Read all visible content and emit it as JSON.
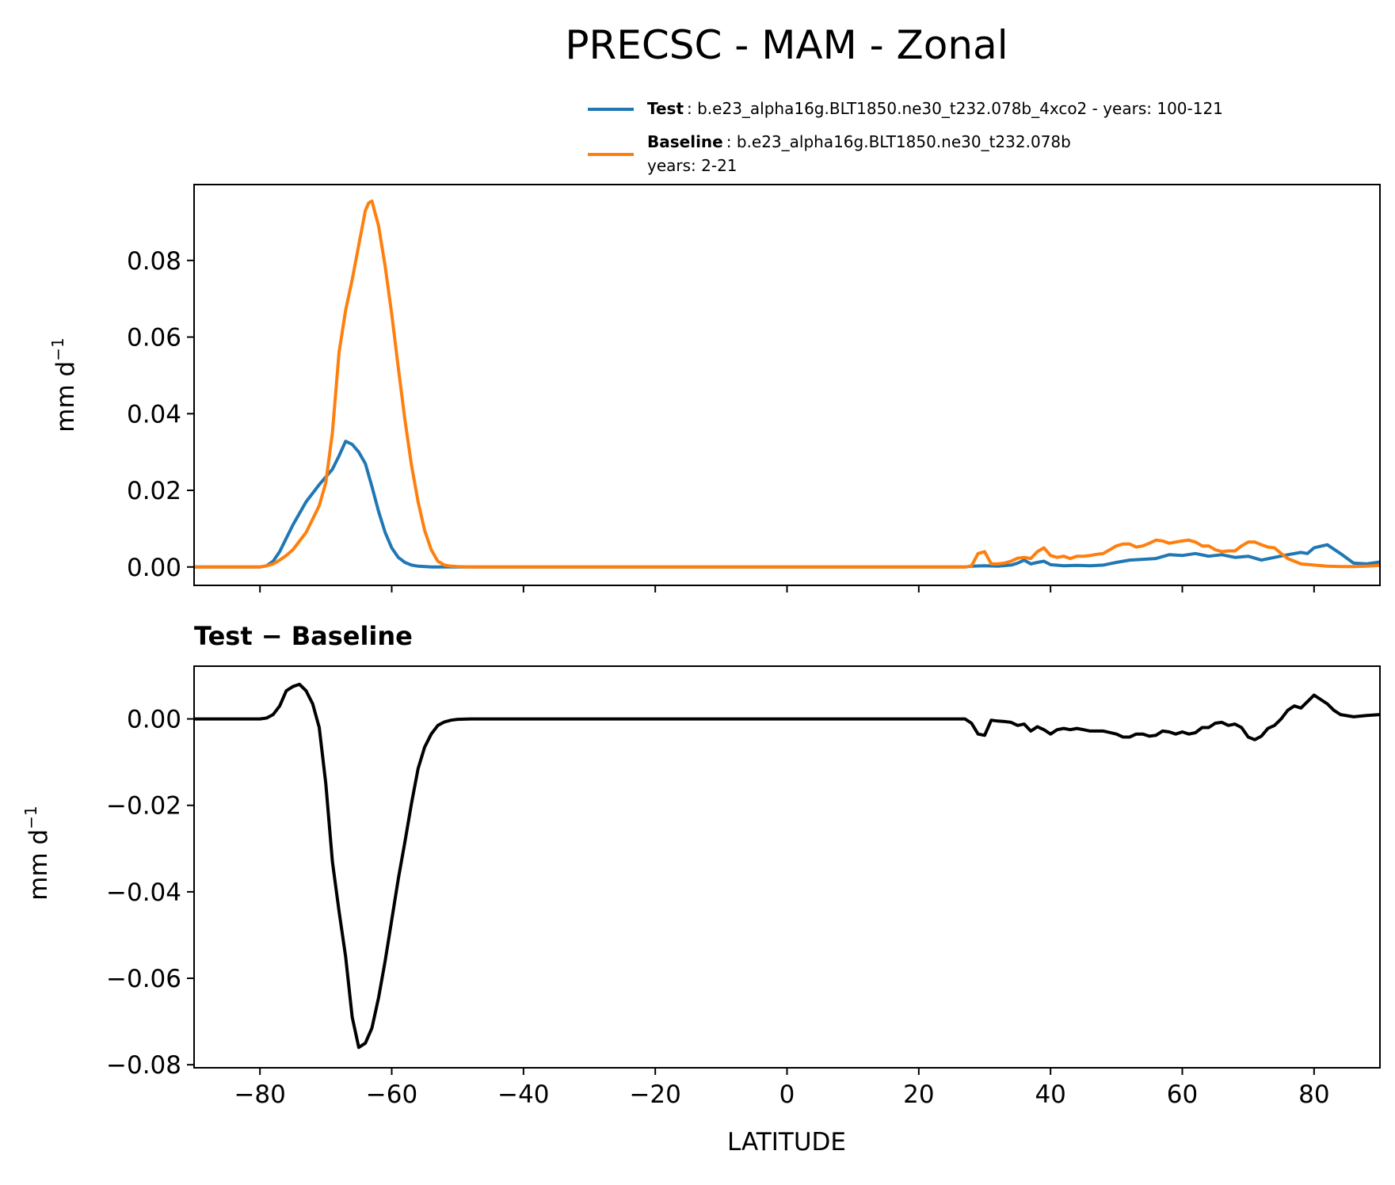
{
  "figure": {
    "title": "PRECSC - MAM - Zonal",
    "diff_title": "Test − Baseline"
  },
  "legend": {
    "test_label": "Test",
    "test_text": ": b.e23_alpha16g.BLT1850.ne30_t232.078b_4xco2 - years: 100-121",
    "baseline_label": "Baseline",
    "baseline_text": ": b.e23_alpha16g.BLT1850.ne30_t232.078b",
    "baseline_years": "years: 2-21"
  },
  "colors": {
    "test": "#1f77b4",
    "baseline": "#ff7f0e",
    "diff": "#000000"
  },
  "chart_data": [
    {
      "type": "line",
      "title": "PRECSC - MAM - Zonal",
      "xlabel": "",
      "ylabel": "mm d",
      "ylabel_sup": "−1",
      "xlim": [
        -90,
        90
      ],
      "ylim": [
        -0.0048,
        0.0998
      ],
      "xticks": [
        -80,
        -60,
        -40,
        -20,
        0,
        20,
        40,
        60,
        80
      ],
      "yticks": [
        0.0,
        0.02,
        0.04,
        0.06,
        0.08
      ],
      "ytick_labels": [
        "0.00",
        "0.02",
        "0.04",
        "0.06",
        "0.08"
      ],
      "series": [
        {
          "name": "Test",
          "x": [
            -90,
            -80,
            -79,
            -78,
            -77,
            -76,
            -75,
            -73,
            -71,
            -69,
            -68,
            -67,
            -66,
            -65,
            -64,
            -63,
            -62,
            -61,
            -60,
            -59,
            -58,
            -57,
            -56,
            -55,
            -54,
            -50,
            -40,
            -20,
            0,
            20,
            27,
            28,
            30,
            32,
            34,
            35,
            36,
            37,
            38,
            39,
            40,
            42,
            44,
            46,
            48,
            50,
            52,
            54,
            56,
            58,
            60,
            62,
            64,
            66,
            68,
            70,
            72,
            74,
            76,
            78,
            79,
            80,
            82,
            84,
            86,
            88,
            90
          ],
          "values": [
            0,
            0,
            0.0003,
            0.0015,
            0.004,
            0.0075,
            0.011,
            0.017,
            0.0215,
            0.0255,
            0.029,
            0.0328,
            0.032,
            0.03,
            0.027,
            0.021,
            0.0145,
            0.009,
            0.005,
            0.0025,
            0.0012,
            0.0005,
            0.0002,
            0.0001,
            0,
            0,
            0,
            0,
            0,
            0,
            0,
            0.0002,
            0.0003,
            0.0002,
            0.0005,
            0.001,
            0.0018,
            0.0008,
            0.0012,
            0.0015,
            0.0006,
            0.0003,
            0.0004,
            0.0003,
            0.0005,
            0.0012,
            0.0018,
            0.002,
            0.0022,
            0.0032,
            0.003,
            0.0035,
            0.0028,
            0.0032,
            0.0025,
            0.0028,
            0.0018,
            0.0025,
            0.0032,
            0.0038,
            0.0035,
            0.005,
            0.0058,
            0.0035,
            0.001,
            0.0008,
            0.0013
          ]
        },
        {
          "name": "Baseline",
          "x": [
            -90,
            -80,
            -79,
            -78,
            -77,
            -76,
            -75,
            -73,
            -71,
            -70,
            -69,
            -68,
            -67,
            -66,
            -65,
            -64,
            -63.5,
            -63,
            -62,
            -61,
            -60,
            -59,
            -58,
            -57,
            -56,
            -55,
            -54,
            -53,
            -52,
            -51,
            -50,
            -48,
            -40,
            -20,
            0,
            20,
            27,
            28,
            29,
            30,
            31,
            32,
            33,
            34,
            35,
            36,
            37,
            38,
            39,
            40,
            41,
            42,
            43,
            44,
            45,
            46,
            47,
            48,
            50,
            51,
            52,
            53,
            54,
            55,
            56,
            57,
            58,
            59,
            60,
            61,
            62,
            63,
            64,
            65,
            66,
            67,
            68,
            69,
            70,
            71,
            72,
            73,
            74,
            75,
            76,
            77,
            78,
            80,
            82,
            84,
            86,
            88,
            90
          ],
          "values": [
            0,
            0,
            0.0003,
            0.0008,
            0.0018,
            0.003,
            0.0045,
            0.009,
            0.016,
            0.022,
            0.035,
            0.056,
            0.067,
            0.075,
            0.084,
            0.093,
            0.095,
            0.0955,
            0.089,
            0.0785,
            0.066,
            0.052,
            0.0385,
            0.0265,
            0.017,
            0.0095,
            0.0045,
            0.0015,
            0.0005,
            0.0002,
            0.0001,
            0,
            0,
            0,
            0,
            0,
            0,
            0.0003,
            0.0035,
            0.004,
            0.0008,
            0.0008,
            0.001,
            0.0015,
            0.0023,
            0.0025,
            0.0022,
            0.004,
            0.005,
            0.003,
            0.0025,
            0.0028,
            0.0022,
            0.0028,
            0.0028,
            0.003,
            0.0033,
            0.0035,
            0.0055,
            0.006,
            0.006,
            0.0052,
            0.0055,
            0.0062,
            0.007,
            0.0068,
            0.0062,
            0.0065,
            0.0068,
            0.007,
            0.0065,
            0.0055,
            0.0055,
            0.0045,
            0.004,
            0.0042,
            0.0042,
            0.0055,
            0.0065,
            0.0065,
            0.0058,
            0.0052,
            0.005,
            0.0035,
            0.0022,
            0.0015,
            0.0008,
            0.0005,
            0.0002,
            0.0001,
            0.0001,
            0.0002,
            0.0004
          ]
        }
      ]
    },
    {
      "type": "line",
      "title": "Test − Baseline",
      "xlabel": "LATITUDE",
      "ylabel": "mm d",
      "ylabel_sup": "−1",
      "xlim": [
        -90,
        90
      ],
      "ylim": [
        -0.0807,
        0.0122
      ],
      "xticks": [
        -80,
        -60,
        -40,
        -20,
        0,
        20,
        40,
        60,
        80
      ],
      "xtick_labels": [
        "−80",
        "−60",
        "−40",
        "−20",
        "0",
        "20",
        "40",
        "60",
        "80"
      ],
      "yticks": [
        0.0,
        -0.02,
        -0.04,
        -0.06,
        -0.08
      ],
      "ytick_labels": [
        "0.00",
        "−0.02",
        "−0.04",
        "−0.06",
        "−0.08"
      ],
      "series": [
        {
          "name": "Test − Baseline",
          "x": [
            -90,
            -80,
            -79,
            -78,
            -77,
            -76,
            -75,
            -74,
            -73,
            -72,
            -71,
            -70,
            -69,
            -68,
            -67,
            -66,
            -65,
            -64,
            -63,
            -62,
            -61,
            -60,
            -59,
            -58,
            -57,
            -56,
            -55,
            -54,
            -53,
            -52,
            -51,
            -50,
            -48,
            -40,
            -20,
            0,
            20,
            27,
            28,
            29,
            30,
            31,
            32,
            33,
            34,
            35,
            36,
            37,
            38,
            39,
            40,
            41,
            42,
            43,
            44,
            45,
            46,
            48,
            50,
            51,
            52,
            53,
            54,
            55,
            56,
            57,
            58,
            59,
            60,
            61,
            62,
            63,
            64,
            65,
            66,
            67,
            68,
            69,
            70,
            71,
            72,
            73,
            74,
            75,
            76,
            77,
            78,
            79,
            80,
            81,
            82,
            83,
            84,
            86,
            88,
            90
          ],
          "values": [
            0,
            0,
            0.0002,
            0.001,
            0.003,
            0.0065,
            0.0075,
            0.008,
            0.0065,
            0.0035,
            -0.002,
            -0.015,
            -0.033,
            -0.0445,
            -0.055,
            -0.069,
            -0.076,
            -0.075,
            -0.0715,
            -0.0645,
            -0.056,
            -0.0465,
            -0.037,
            -0.0285,
            -0.0195,
            -0.0115,
            -0.0065,
            -0.0035,
            -0.0015,
            -0.0007,
            -0.0003,
            -0.0001,
            0,
            0,
            0,
            0,
            0,
            0,
            -0.001,
            -0.0035,
            -0.0038,
            -0.0003,
            -0.0005,
            -0.0006,
            -0.0008,
            -0.0015,
            -0.0012,
            -0.0028,
            -0.0018,
            -0.0025,
            -0.0035,
            -0.0025,
            -0.0022,
            -0.0025,
            -0.0022,
            -0.0025,
            -0.0028,
            -0.0028,
            -0.0035,
            -0.0042,
            -0.0042,
            -0.0035,
            -0.0035,
            -0.004,
            -0.0038,
            -0.0028,
            -0.003,
            -0.0035,
            -0.003,
            -0.0035,
            -0.0032,
            -0.002,
            -0.002,
            -0.001,
            -0.0008,
            -0.0015,
            -0.0012,
            -0.002,
            -0.0042,
            -0.0048,
            -0.004,
            -0.0022,
            -0.0015,
            0,
            0.002,
            0.003,
            0.0025,
            0.004,
            0.0055,
            0.0045,
            0.0035,
            0.002,
            0.001,
            0.0005,
            0.0008,
            0.001
          ]
        }
      ]
    }
  ]
}
